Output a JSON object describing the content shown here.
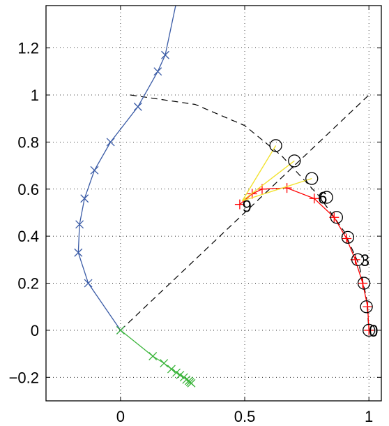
{
  "chart_data": {
    "type": "line",
    "title": "",
    "xlabel": "",
    "ylabel": "",
    "xlim": [
      -0.3,
      1.05
    ],
    "ylim": [
      -0.3,
      1.38
    ],
    "grid": true,
    "x_ticks": [
      0,
      0.5,
      1
    ],
    "x_tick_labels": [
      "0",
      "0.5",
      "1"
    ],
    "y_ticks": [
      -0.2,
      0,
      0.2,
      0.4,
      0.6,
      0.8,
      1,
      1.2
    ],
    "y_tick_labels": [
      "−0.2",
      "0",
      "0.2",
      "0.4",
      "0.6",
      "0.8",
      "1",
      "1.2"
    ],
    "series": [
      {
        "kind": "dashed-line",
        "color": "#000000",
        "x": [
          0,
          1
        ],
        "y": [
          0,
          1
        ]
      },
      {
        "kind": "dashed-curve",
        "color": "#000000",
        "x": [
          0.04,
          0.3,
          0.5,
          0.65,
          0.8,
          0.9,
          0.96,
          0.99,
          1.0
        ],
        "y": [
          1.0,
          0.96,
          0.87,
          0.74,
          0.57,
          0.42,
          0.28,
          0.14,
          0.0
        ]
      },
      {
        "kind": "line-x-markers",
        "color": "#3a5ba6",
        "marker": "x",
        "x": [
          0,
          -0.13,
          -0.17,
          -0.165,
          -0.145,
          -0.105,
          -0.04,
          0.07,
          0.15,
          0.18,
          0.23
        ],
        "y": [
          0,
          0.2,
          0.33,
          0.45,
          0.56,
          0.68,
          0.8,
          0.95,
          1.1,
          1.17,
          1.42
        ],
        "marker_count": 10
      },
      {
        "kind": "line-x-markers",
        "color": "#3cb53c",
        "marker": "x",
        "x": [
          0,
          0.13,
          0.175,
          0.205,
          0.225,
          0.24,
          0.255,
          0.265,
          0.275,
          0.28,
          0.285
        ],
        "y": [
          0,
          -0.11,
          -0.14,
          -0.165,
          -0.18,
          -0.19,
          -0.2,
          -0.21,
          -0.215,
          -0.22,
          -0.225
        ]
      },
      {
        "kind": "line-plus-markers",
        "color": "#ff0000",
        "marker": "+",
        "x": [
          1.0,
          0.995,
          0.975,
          0.945,
          0.91,
          0.86,
          0.78,
          0.67,
          0.57,
          0.53,
          0.48
        ],
        "y": [
          0.0,
          0.1,
          0.2,
          0.3,
          0.39,
          0.48,
          0.56,
          0.605,
          0.6,
          0.58,
          0.535
        ]
      },
      {
        "kind": "circle-markers",
        "color": "#000000",
        "marker": "o",
        "x": [
          1.0,
          0.99,
          0.98,
          0.955,
          0.915,
          0.87,
          0.83,
          0.77,
          0.7,
          0.625
        ],
        "y": [
          0.0,
          0.1,
          0.2,
          0.3,
          0.395,
          0.48,
          0.565,
          0.645,
          0.72,
          0.785
        ]
      },
      {
        "kind": "connector-lines",
        "color": "#f2e22e",
        "from": [
          0.49,
          0.55
        ],
        "to_x": [
          0.625,
          0.7,
          0.77
        ],
        "to_y": [
          0.785,
          0.72,
          0.645
        ]
      }
    ],
    "annotations": [
      {
        "text": "0",
        "x": 1.0,
        "y": 0.0
      },
      {
        "text": "3",
        "x": 0.965,
        "y": 0.3
      },
      {
        "text": "6",
        "x": 0.795,
        "y": 0.565
      },
      {
        "text": "9",
        "x": 0.49,
        "y": 0.53
      }
    ]
  }
}
